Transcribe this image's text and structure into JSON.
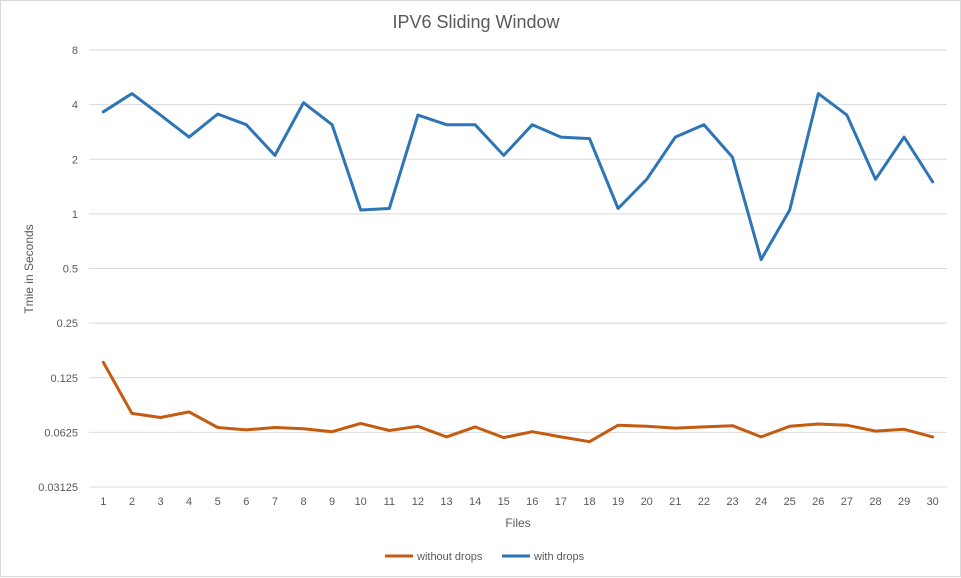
{
  "chart_data": {
    "type": "line",
    "title": "IPV6 Sliding Window",
    "xlabel": "Files",
    "ylabel": "Tmie in Seconds",
    "y_scale": "log2",
    "ylim": [
      0.03125,
      8
    ],
    "y_ticks": [
      {
        "value": 8,
        "label": "8"
      },
      {
        "value": 4,
        "label": "4"
      },
      {
        "value": 2,
        "label": "2"
      },
      {
        "value": 1,
        "label": "1"
      },
      {
        "value": 0.5,
        "label": "0.5"
      },
      {
        "value": 0.25,
        "label": "0.25"
      },
      {
        "value": 0.125,
        "label": "0.125"
      },
      {
        "value": 0.0625,
        "label": "0.0625"
      },
      {
        "value": 0.03125,
        "label": "0.03125"
      }
    ],
    "categories": [
      "1",
      "2",
      "3",
      "4",
      "5",
      "6",
      "7",
      "8",
      "9",
      "10",
      "11",
      "12",
      "13",
      "14",
      "15",
      "16",
      "17",
      "18",
      "19",
      "20",
      "21",
      "22",
      "23",
      "24",
      "25",
      "26",
      "27",
      "28",
      "29",
      "30"
    ],
    "grid": "horizontal",
    "legend_position": "bottom",
    "series": [
      {
        "name": "without drops",
        "color": "#c55a11",
        "values": [
          0.152,
          0.0795,
          0.0755,
          0.081,
          0.0665,
          0.0645,
          0.0665,
          0.0655,
          0.063,
          0.07,
          0.064,
          0.0675,
          0.059,
          0.067,
          0.0585,
          0.063,
          0.059,
          0.0555,
          0.0685,
          0.0675,
          0.066,
          0.067,
          0.068,
          0.059,
          0.0675,
          0.0695,
          0.0685,
          0.0635,
          0.065,
          0.059
        ]
      },
      {
        "name": "with drops",
        "color": "#2e75b6",
        "values": [
          3.65,
          4.6,
          3.5,
          2.65,
          3.55,
          3.1,
          2.1,
          4.1,
          3.1,
          1.05,
          1.07,
          3.5,
          3.1,
          3.1,
          2.1,
          3.1,
          2.65,
          2.6,
          1.07,
          1.55,
          2.65,
          3.1,
          2.05,
          0.56,
          1.05,
          4.6,
          3.5,
          1.55,
          2.65,
          1.5
        ]
      }
    ]
  }
}
